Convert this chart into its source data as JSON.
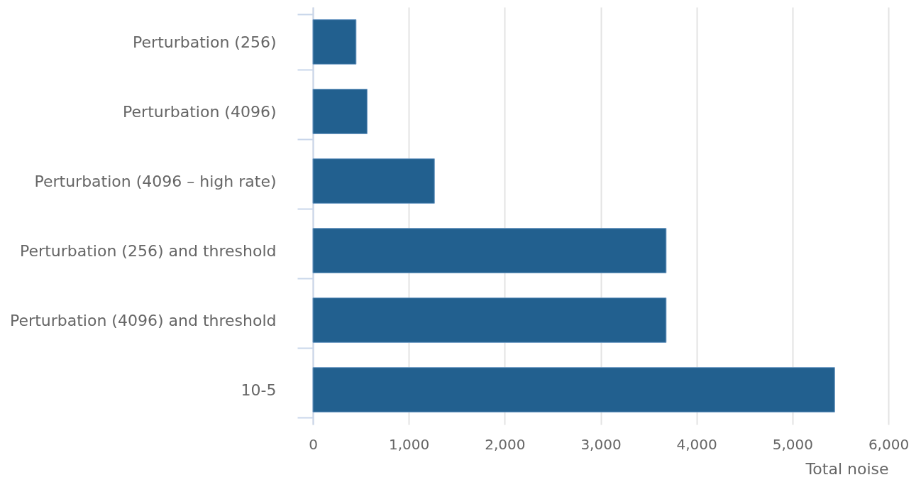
{
  "chart_data": {
    "type": "bar",
    "orientation": "horizontal",
    "xlabel": "Total noise",
    "categories": [
      "Perturbation (256)",
      "Perturbation (4096)",
      "Perturbation (4096 – high rate)",
      "Perturbation (256) and threshold",
      "Perturbation (4096) and threshold",
      "10-5"
    ],
    "values": [
      450,
      565,
      1267,
      3683,
      3683,
      5440
    ],
    "color": "#22608f",
    "xlim": [
      0,
      6000
    ],
    "xticks": [
      {
        "value": 0,
        "label": "0"
      },
      {
        "value": 1000,
        "label": "1,000"
      },
      {
        "value": 2000,
        "label": "2,000"
      },
      {
        "value": 3000,
        "label": "3,000"
      },
      {
        "value": 4000,
        "label": "4,000"
      },
      {
        "value": 5000,
        "label": "5,000"
      },
      {
        "value": 6000,
        "label": "6,000"
      }
    ],
    "grid": "x"
  }
}
